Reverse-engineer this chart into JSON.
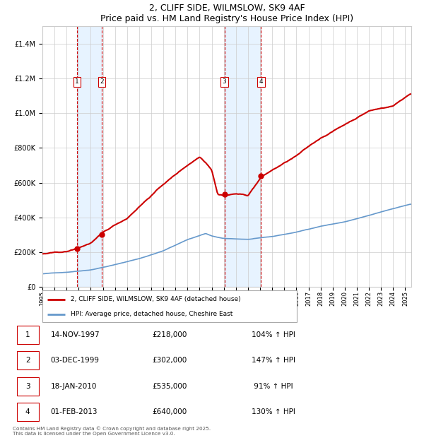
{
  "title": "2, CLIFF SIDE, WILMSLOW, SK9 4AF",
  "subtitle": "Price paid vs. HM Land Registry's House Price Index (HPI)",
  "footnote": "Contains HM Land Registry data © Crown copyright and database right 2025.\nThis data is licensed under the Open Government Licence v3.0.",
  "legend_red": "2, CLIFF SIDE, WILMSLOW, SK9 4AF (detached house)",
  "legend_blue": "HPI: Average price, detached house, Cheshire East",
  "transactions": [
    {
      "num": 1,
      "date": "14-NOV-1997",
      "year": 1997.87,
      "price": 218000,
      "pct": "104% ↑ HPI"
    },
    {
      "num": 2,
      "date": "03-DEC-1999",
      "year": 1999.92,
      "price": 302000,
      "pct": "147% ↑ HPI"
    },
    {
      "num": 3,
      "date": "18-JAN-2010",
      "year": 2010.05,
      "price": 535000,
      "pct": "91% ↑ HPI"
    },
    {
      "num": 4,
      "date": "01-FEB-2013",
      "year": 2013.08,
      "price": 640000,
      "pct": "130% ↑ HPI"
    }
  ],
  "red_color": "#cc0000",
  "blue_color": "#6699cc",
  "bg_color": "#ffffff",
  "grid_color": "#cccccc",
  "vline_color": "#cc0000",
  "shade_color": "#ddeeff",
  "ylim": [
    0,
    1500000
  ],
  "yticks": [
    0,
    200000,
    400000,
    600000,
    800000,
    1000000,
    1200000,
    1400000
  ],
  "xlim_start": 1995,
  "xlim_end": 2025.5,
  "table_rows": [
    [
      1,
      "14-NOV-1997",
      "£218,000",
      "104% ↑ HPI"
    ],
    [
      2,
      "03-DEC-1999",
      "£302,000",
      "147% ↑ HPI"
    ],
    [
      3,
      "18-JAN-2010",
      "£535,000",
      " 91% ↑ HPI"
    ],
    [
      4,
      "01-FEB-2013",
      "£640,000",
      "130% ↑ HPI"
    ]
  ]
}
